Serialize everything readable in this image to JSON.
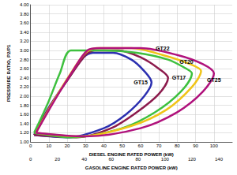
{
  "chart_data": {
    "type": "line",
    "xlabel": "DIESEL ENGINE RATED POWER (kW)",
    "ylabel": "PRESSURE RATIO, P2/P1",
    "x2label": "GASOLINE ENGINE RATED POWER (kW)",
    "xlim": [
      0,
      110
    ],
    "xticks": [
      0,
      10,
      20,
      30,
      40,
      50,
      60,
      70,
      80,
      90,
      100
    ],
    "x2lim": [
      0,
      150
    ],
    "x2ticks": [
      0,
      20,
      40,
      60,
      80,
      100,
      120,
      140
    ],
    "ylim": [
      1.0,
      4.0
    ],
    "yticks": [
      {
        "value": 1.0,
        "label": "1.00"
      },
      {
        "value": 1.2,
        "label": "1.20"
      },
      {
        "value": 1.4,
        "label": "1.40"
      },
      {
        "value": 1.6,
        "label": "1.60"
      },
      {
        "value": 1.8,
        "label": "1.80"
      },
      {
        "value": 2.0,
        "label": "2.00"
      },
      {
        "value": 2.2,
        "label": "2.20"
      },
      {
        "value": 2.4,
        "label": "2.40"
      },
      {
        "value": 2.6,
        "label": "2.60"
      },
      {
        "value": 2.8,
        "label": "2.80"
      },
      {
        "value": 3.0,
        "label": "3.00"
      },
      {
        "value": 3.2,
        "label": "3.20"
      },
      {
        "value": 3.4,
        "label": "3.40"
      },
      {
        "value": 3.6,
        "label": "3.60"
      },
      {
        "value": 3.8,
        "label": "3.80"
      },
      {
        "value": 4.0,
        "label": "4.00"
      }
    ],
    "grid": true,
    "series": [
      {
        "name": "GT15",
        "color": "#2b2fb0",
        "values": [
          [
            2,
            1.15
          ],
          [
            10,
            1.75
          ],
          [
            20,
            2.35
          ],
          [
            29,
            2.85
          ],
          [
            34,
            2.95
          ],
          [
            45,
            2.95
          ],
          [
            55,
            2.8
          ],
          [
            62,
            2.55
          ],
          [
            66,
            2.3
          ],
          [
            62,
            2.0
          ],
          [
            52,
            1.6
          ],
          [
            40,
            1.3
          ],
          [
            20,
            1.1
          ],
          [
            2,
            1.15
          ]
        ]
      },
      {
        "name": "GT17",
        "color": "#8c1a4c",
        "values": [
          [
            2,
            1.15
          ],
          [
            11,
            1.8
          ],
          [
            21,
            2.4
          ],
          [
            30,
            2.9
          ],
          [
            35,
            3.0
          ],
          [
            48,
            3.0
          ],
          [
            60,
            2.85
          ],
          [
            70,
            2.6
          ],
          [
            75,
            2.4
          ],
          [
            70,
            2.05
          ],
          [
            58,
            1.65
          ],
          [
            44,
            1.3
          ],
          [
            25,
            1.1
          ],
          [
            2,
            1.15
          ]
        ]
      },
      {
        "name": "GT20",
        "color": "#3ec03e",
        "values": [
          [
            2,
            1.2
          ],
          [
            9,
            1.8
          ],
          [
            16,
            2.5
          ],
          [
            22,
            3.0
          ],
          [
            40,
            3.0
          ],
          [
            58,
            2.95
          ],
          [
            75,
            2.8
          ],
          [
            85,
            2.6
          ],
          [
            88,
            2.5
          ],
          [
            82,
            2.1
          ],
          [
            68,
            1.65
          ],
          [
            50,
            1.3
          ],
          [
            22,
            1.1
          ],
          [
            2,
            1.2
          ]
        ]
      },
      {
        "name": "GT22",
        "color": "#f0c418",
        "values": [
          [
            3,
            1.2
          ],
          [
            12,
            1.85
          ],
          [
            22,
            2.5
          ],
          [
            30,
            2.95
          ],
          [
            36,
            3.05
          ],
          [
            55,
            3.05
          ],
          [
            72,
            2.9
          ],
          [
            87,
            2.7
          ],
          [
            93,
            2.55
          ],
          [
            88,
            2.2
          ],
          [
            74,
            1.7
          ],
          [
            55,
            1.35
          ],
          [
            27,
            1.12
          ],
          [
            3,
            1.2
          ]
        ]
      },
      {
        "name": "GT25",
        "color": "#b0127c",
        "values": [
          [
            3,
            1.2
          ],
          [
            13,
            1.9
          ],
          [
            23,
            2.55
          ],
          [
            31,
            3.0
          ],
          [
            38,
            3.05
          ],
          [
            60,
            3.05
          ],
          [
            80,
            2.9
          ],
          [
            94,
            2.7
          ],
          [
            100,
            2.5
          ],
          [
            94,
            2.1
          ],
          [
            80,
            1.65
          ],
          [
            60,
            1.3
          ],
          [
            30,
            1.12
          ],
          [
            3,
            1.2
          ]
        ]
      }
    ]
  }
}
